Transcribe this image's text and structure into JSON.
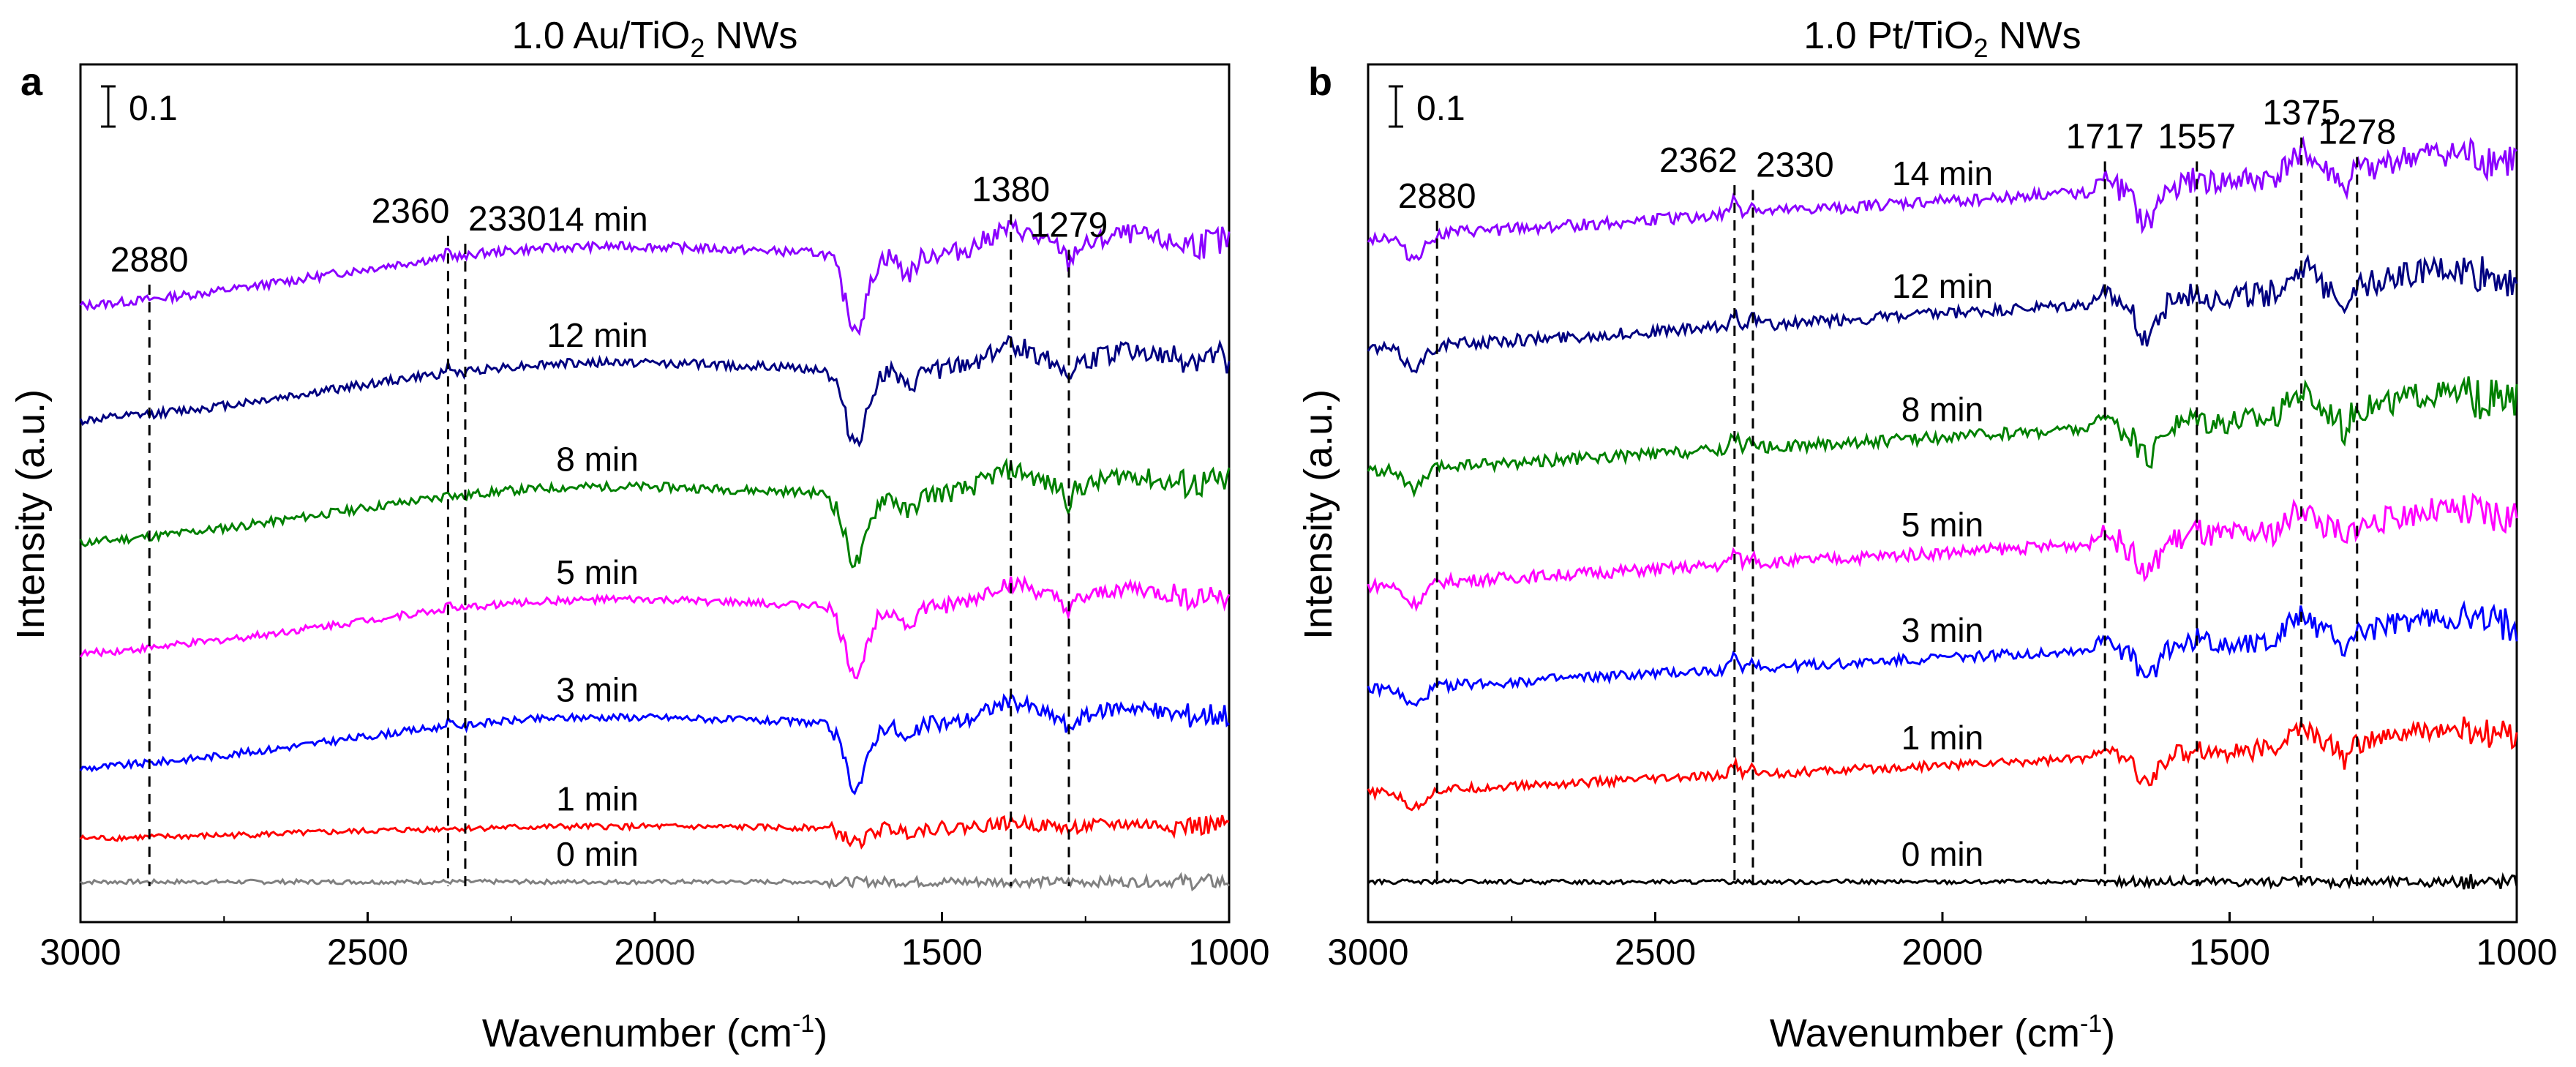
{
  "chart_data": [
    {
      "type": "line",
      "panel_letter": "a",
      "title_main": "1.0 Au/TiO",
      "title_sub": "2",
      "title_tail": " NWs",
      "xlabel_main": "Wavenumber (cm",
      "xlabel_sup": "-1",
      "xlabel_tail": ")",
      "ylabel": "Intensity (a.u.)",
      "xlim": [
        3000,
        1000
      ],
      "xticks": [
        3000,
        2500,
        2000,
        1500,
        1000
      ],
      "tick_labels": [
        "3000",
        "2500",
        "2000",
        "1500",
        "1000"
      ],
      "ylim": [
        0,
        1.1
      ],
      "scale_bar": {
        "label": "0.1",
        "value": 0.1
      },
      "annotations": [
        {
          "x": 2880,
          "label": "2880"
        },
        {
          "x": 2360,
          "label": "2360"
        },
        {
          "x": 2330,
          "label": "2330"
        },
        {
          "x": 1380,
          "label": "1380"
        },
        {
          "x": 1279,
          "label": "1279"
        }
      ],
      "series": [
        {
          "name": "0 min",
          "color": "#808080",
          "offset": 0.0,
          "amp": 0.0,
          "noise": 0.003
        },
        {
          "name": "1 min",
          "color": "#ff0000",
          "offset": 0.058,
          "amp": 0.18,
          "noise": 0.004
        },
        {
          "name": "3 min",
          "color": "#0000ff",
          "offset": 0.15,
          "amp": 0.78,
          "noise": 0.005
        },
        {
          "name": "5 min",
          "color": "#ff00ff",
          "offset": 0.305,
          "amp": 0.82,
          "noise": 0.005
        },
        {
          "name": "8 min",
          "color": "#008000",
          "offset": 0.455,
          "amp": 0.85,
          "noise": 0.006
        },
        {
          "name": "12 min",
          "color": "#000080",
          "offset": 0.62,
          "amp": 0.88,
          "noise": 0.006
        },
        {
          "name": "14 min",
          "color": "#8b00ff",
          "offset": 0.775,
          "amp": 0.9,
          "noise": 0.006
        }
      ]
    },
    {
      "type": "line",
      "panel_letter": "b",
      "title_main": "1.0 Pt/TiO",
      "title_sub": "2",
      "title_tail": " NWs",
      "xlabel_main": "Wavenumber (cm",
      "xlabel_sup": "-1",
      "xlabel_tail": ")",
      "ylabel": "Intensity (a.u.)",
      "xlim": [
        3000,
        1000
      ],
      "xticks": [
        3000,
        2500,
        2000,
        1500,
        1000
      ],
      "tick_labels": [
        "3000",
        "2500",
        "2000",
        "1500",
        "1000"
      ],
      "ylim": [
        0,
        1.1
      ],
      "scale_bar": {
        "label": "0.1",
        "value": 0.1
      },
      "annotations": [
        {
          "x": 2880,
          "label": "2880"
        },
        {
          "x": 2362,
          "label": "2362"
        },
        {
          "x": 2330,
          "label": "2330"
        },
        {
          "x": 1717,
          "label": "1717"
        },
        {
          "x": 1557,
          "label": "1557"
        },
        {
          "x": 1375,
          "label": "1375"
        },
        {
          "x": 1278,
          "label": "1278"
        }
      ],
      "series": [
        {
          "name": "0 min",
          "color": "#000000",
          "offset": 0.0,
          "amp": 0.0,
          "noise": 0.003
        },
        {
          "name": "1 min",
          "color": "#ff0000",
          "offset": 0.12,
          "amp": 0.75,
          "noise": 0.006
        },
        {
          "name": "3 min",
          "color": "#0000ff",
          "offset": 0.26,
          "amp": 0.85,
          "noise": 0.007
        },
        {
          "name": "5 min",
          "color": "#ff00ff",
          "offset": 0.4,
          "amp": 0.9,
          "noise": 0.008
        },
        {
          "name": "8 min",
          "color": "#008000",
          "offset": 0.555,
          "amp": 0.92,
          "noise": 0.008
        },
        {
          "name": "12 min",
          "color": "#000080",
          "offset": 0.72,
          "amp": 0.95,
          "noise": 0.008
        },
        {
          "name": "14 min",
          "color": "#8b00ff",
          "offset": 0.87,
          "amp": 1.0,
          "noise": 0.008
        }
      ]
    }
  ]
}
